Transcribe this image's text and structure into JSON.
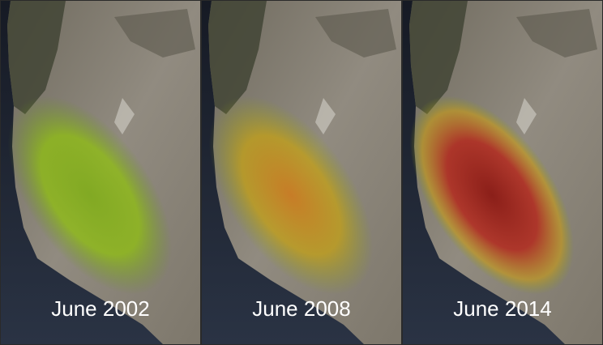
{
  "panels": [
    {
      "label": "June 2002"
    },
    {
      "label": "June 2008"
    },
    {
      "label": "June 2014"
    }
  ]
}
